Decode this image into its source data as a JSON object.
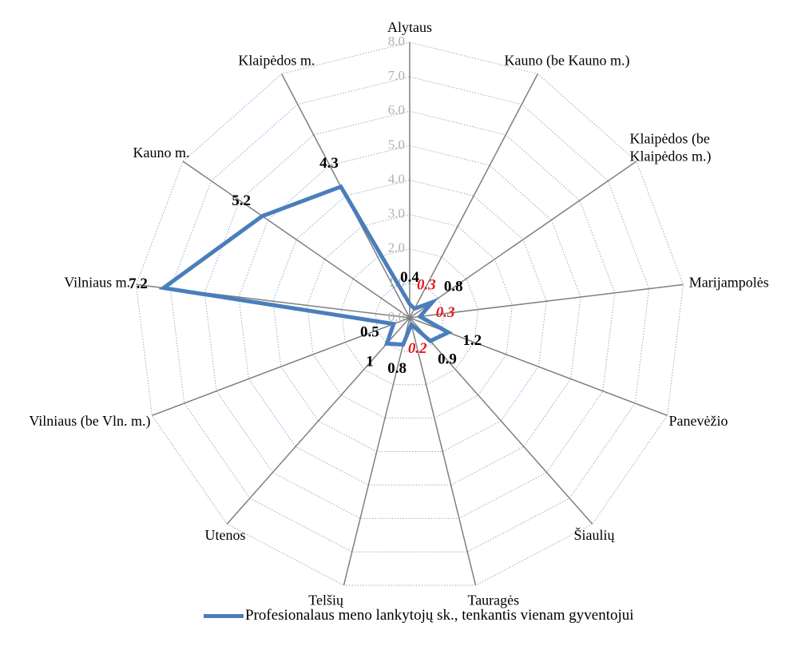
{
  "chart_data": {
    "type": "radar",
    "categories": [
      "Alytaus",
      "Kauno (be Kauno m.)",
      "Klaipėdos (be Klaipėdos m.)",
      "Marijampolės",
      "Panevėžio",
      "Šiaulių",
      "Tauragės",
      "Telšių",
      "Utenos",
      "Vilniaus (be Vln. m.)",
      "Vilniaus m.",
      "Kauno m.",
      "Klaipėdos m."
    ],
    "series": [
      {
        "name": "Profesionalaus meno lankytojų sk., tenkantis vienam gyventojui",
        "color": "#4a7ebb",
        "values": [
          0.4,
          0.3,
          0.8,
          0.3,
          1.2,
          0.9,
          0.2,
          0.8,
          1.0,
          0.5,
          7.2,
          5.2,
          4.3
        ],
        "value_label_colors": [
          "#000000",
          "#e8141c",
          "#000000",
          "#e8141c",
          "#000000",
          "#000000",
          "#e8141c",
          "#000000",
          "#000000",
          "#000000",
          "#000000",
          "#000000",
          "#000000"
        ]
      }
    ],
    "ylim": [
      0,
      8
    ],
    "yticks": [
      {
        "value": 0,
        "label": "0.0"
      },
      {
        "value": 1,
        "label": "1.0"
      },
      {
        "value": 2,
        "label": "2.0"
      },
      {
        "value": 3,
        "label": "3.0"
      },
      {
        "value": 4,
        "label": "4.0"
      },
      {
        "value": 5,
        "label": "5.0"
      },
      {
        "value": 6,
        "label": "6.0"
      },
      {
        "value": 7,
        "label": "7.0"
      },
      {
        "value": 8,
        "label": "8.0"
      }
    ],
    "grid": true,
    "legend": "bottom"
  }
}
